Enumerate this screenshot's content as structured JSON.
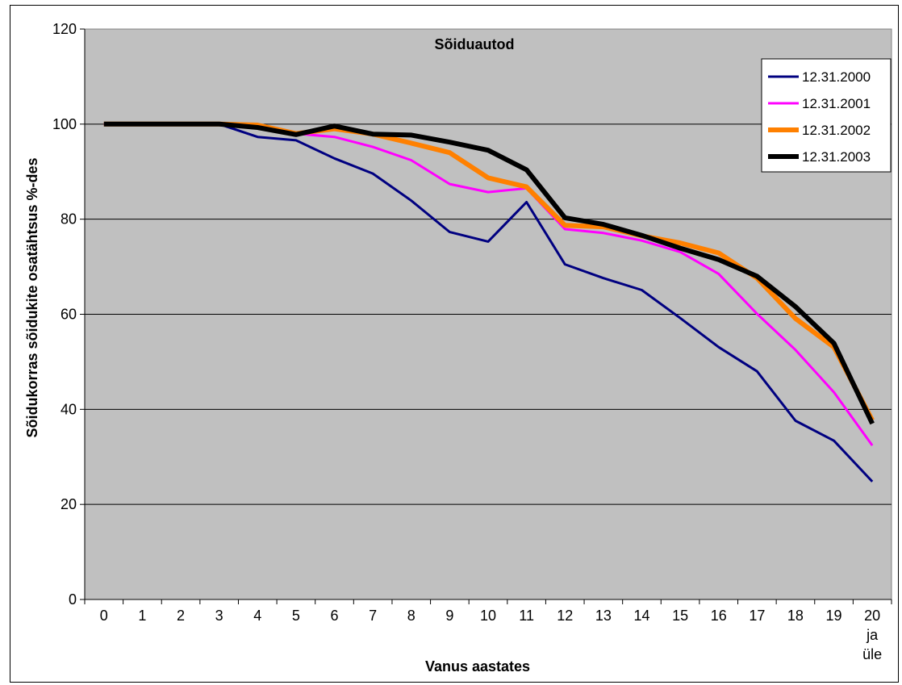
{
  "chart_data": {
    "type": "line",
    "title": "Sõiduautod",
    "xlabel": "Vanus aastates",
    "ylabel": "Sõidukorras sõidukite osatähtsus %-des",
    "ylim": [
      0,
      120
    ],
    "yticks": [
      "0",
      "20",
      "40",
      "60",
      "80",
      "100",
      "120"
    ],
    "categories": [
      "0",
      "1",
      "2",
      "3",
      "4",
      "5",
      "6",
      "7",
      "8",
      "9",
      "10",
      "11",
      "12",
      "13",
      "14",
      "15",
      "16",
      "17",
      "18",
      "19",
      "20 ja üle"
    ],
    "grid": true,
    "legend_position": "top-right",
    "plot_background": "#c0c0c0",
    "series": [
      {
        "name": "12.31.2000",
        "color": "#000080",
        "values": [
          100,
          100,
          100,
          100,
          97.3,
          96.6,
          92.8,
          89.6,
          83.9,
          77.3,
          75.3,
          83.6,
          70.5,
          67.6,
          65.1,
          59.2,
          53.1,
          48,
          37.6,
          33.4,
          24.8
        ]
      },
      {
        "name": "12.31.2001",
        "color": "#ff00ff",
        "values": [
          100,
          100,
          100,
          100,
          100,
          98,
          97.3,
          95.2,
          92.4,
          87.4,
          85.7,
          86.5,
          77.9,
          77.1,
          75.5,
          73.1,
          68.5,
          60.1,
          52.5,
          43.6,
          32.4
        ]
      },
      {
        "name": "12.31.2002",
        "color": "#ff8000",
        "values": [
          100,
          100,
          100,
          100,
          99.8,
          98,
          99,
          97.9,
          96,
          94,
          88.7,
          86.8,
          78.7,
          78.4,
          76.5,
          75,
          72.9,
          67.6,
          59.1,
          53.1,
          37.7
        ]
      },
      {
        "name": "12.31.2003",
        "color": "#000000",
        "values": [
          100,
          100,
          100,
          100,
          99.3,
          97.8,
          99.6,
          97.9,
          97.7,
          96.2,
          94.5,
          90.4,
          80.3,
          78.9,
          76.6,
          73.9,
          71.5,
          68,
          61.6,
          53.9,
          37
        ]
      }
    ]
  }
}
